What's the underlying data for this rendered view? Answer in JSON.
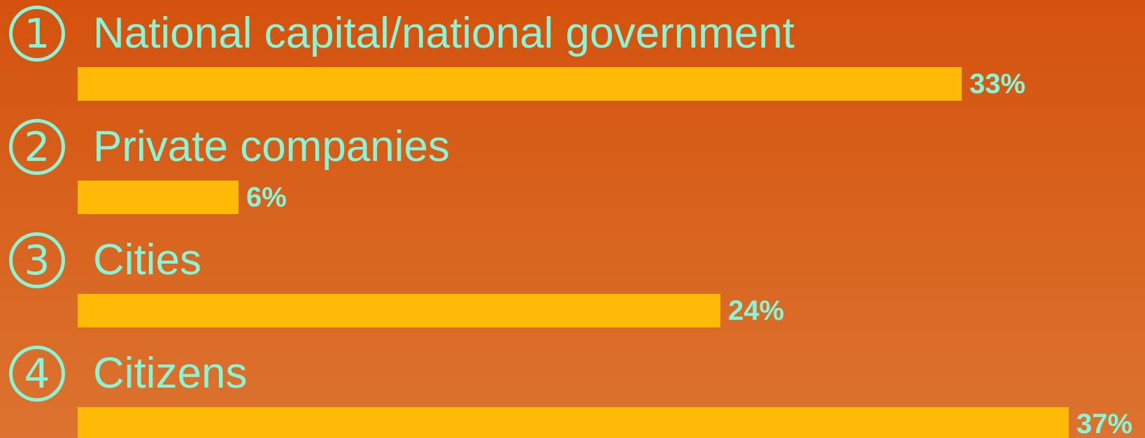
{
  "chart_data": {
    "type": "bar",
    "orientation": "horizontal",
    "categories": [
      "National capital/national government",
      "Private companies",
      "Cities",
      "Citizens"
    ],
    "markers": [
      "1",
      "2",
      "3",
      "4"
    ],
    "values": [
      33,
      6,
      24,
      37
    ],
    "value_labels": [
      "33%",
      "6%",
      "24%",
      "37%"
    ],
    "unit": "%",
    "title": "",
    "xlabel": "",
    "ylabel": "",
    "grid": false,
    "legend": "none",
    "colors": {
      "bar": "#ffba08",
      "text": "#86f5d8",
      "background_top": "#d4520e",
      "background_bottom": "#dc7330"
    }
  }
}
